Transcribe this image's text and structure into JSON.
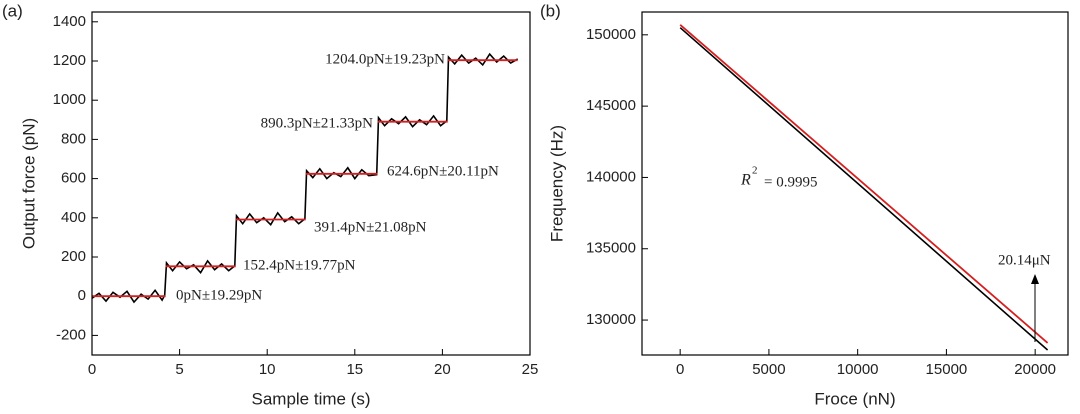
{
  "chart_data": [
    {
      "type": "line",
      "panel_label": "(a)",
      "xlabel": "Sample time (s)",
      "ylabel": "Output force (pN)",
      "xlim": [
        0,
        25
      ],
      "ylim": [
        -300,
        1450
      ],
      "xticks": [
        0,
        5,
        10,
        15,
        20,
        25
      ],
      "yticks": [
        -200,
        0,
        200,
        400,
        600,
        800,
        1000,
        1200,
        1400
      ],
      "series": [
        {
          "color": "#000000",
          "x": [
            0,
            0.4,
            0.8,
            1.2,
            1.6,
            2.0,
            2.4,
            2.8,
            3.2,
            3.6,
            4.0,
            4.15,
            4.25,
            4.6,
            5.0,
            5.4,
            5.8,
            6.2,
            6.6,
            7.0,
            7.4,
            7.8,
            8.15,
            8.25,
            8.6,
            9.0,
            9.4,
            9.8,
            10.2,
            10.6,
            11.0,
            11.4,
            11.8,
            12.15,
            12.25,
            12.6,
            13.0,
            13.4,
            13.8,
            14.2,
            14.6,
            15.0,
            15.4,
            15.8,
            16.25,
            16.35,
            16.7,
            17.1,
            17.5,
            17.9,
            18.3,
            18.7,
            19.1,
            19.5,
            19.9,
            20.25,
            20.35,
            20.7,
            21.1,
            21.5,
            21.9,
            22.3,
            22.7,
            23.1,
            23.5,
            23.9,
            24.3
          ],
          "values": [
            -10,
            15,
            -25,
            20,
            -5,
            25,
            -30,
            10,
            -15,
            30,
            -20,
            5,
            170,
            130,
            175,
            140,
            160,
            120,
            180,
            135,
            165,
            130,
            155,
            410,
            370,
            420,
            375,
            400,
            365,
            425,
            380,
            405,
            370,
            395,
            640,
            605,
            650,
            600,
            630,
            610,
            655,
            600,
            645,
            615,
            620,
            910,
            870,
            905,
            880,
            915,
            865,
            900,
            875,
            920,
            870,
            895,
            1220,
            1185,
            1230,
            1190,
            1215,
            1180,
            1235,
            1195,
            1225,
            1190,
            1210
          ]
        },
        {
          "color": "#d42020",
          "x": [
            0,
            4.2,
            null,
            4.2,
            8.2,
            null,
            8.2,
            12.2,
            null,
            12.2,
            16.3,
            null,
            16.3,
            20.3,
            null,
            20.3,
            24.3
          ],
          "values": [
            0,
            0,
            null,
            152.4,
            152.4,
            null,
            391.4,
            391.4,
            null,
            624.6,
            624.6,
            null,
            890.3,
            890.3,
            null,
            1204.0,
            1204.0
          ]
        }
      ],
      "annotations": [
        "1204.0pN±19.23pN",
        "890.3pN±21.33pN",
        "624.6pN±20.11pN",
        "391.4pN±21.08pN",
        "152.4pN±19.77pN",
        "0pN±19.29pN"
      ]
    },
    {
      "type": "line",
      "panel_label": "(b)",
      "xlabel": "Froce (nN)",
      "ylabel": "Frequency (Hz)",
      "xlim": [
        -2150,
        21850
      ],
      "ylim": [
        127550,
        151600
      ],
      "xticks": [
        0,
        5000,
        10000,
        15000,
        20000
      ],
      "yticks": [
        130000,
        135000,
        140000,
        145000,
        150000
      ],
      "series": [
        {
          "color": "#000000",
          "x": [
            0,
            20700
          ],
          "values": [
            150500,
            127900
          ]
        },
        {
          "color": "#d42020",
          "x": [
            0,
            20700
          ],
          "values": [
            150700,
            128400
          ]
        }
      ],
      "annotations": [
        "R",
        "2",
        "= 0.9995",
        "20.14μN"
      ]
    }
  ]
}
